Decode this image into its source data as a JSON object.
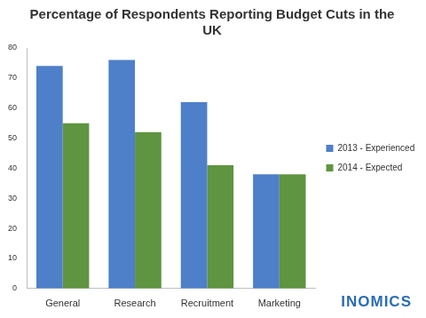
{
  "chart_data": {
    "type": "bar",
    "title": "Percentage of Respondents Reporting Budget Cuts in the UK",
    "categories": [
      "General",
      "Research",
      "Recruitment",
      "Marketing"
    ],
    "series": [
      {
        "name": "2013 - Experienced",
        "color": "#4e7fc9",
        "values": [
          74,
          76,
          62,
          38
        ]
      },
      {
        "name": "2014 - Expected",
        "color": "#5f9440",
        "values": [
          55,
          52,
          41,
          38
        ]
      }
    ],
    "ylim": [
      0,
      80
    ],
    "yticks": [
      0,
      10,
      20,
      30,
      40,
      50,
      60,
      70,
      80
    ],
    "grid": false,
    "legend": "right",
    "annotations": [
      "INOMICS"
    ]
  }
}
